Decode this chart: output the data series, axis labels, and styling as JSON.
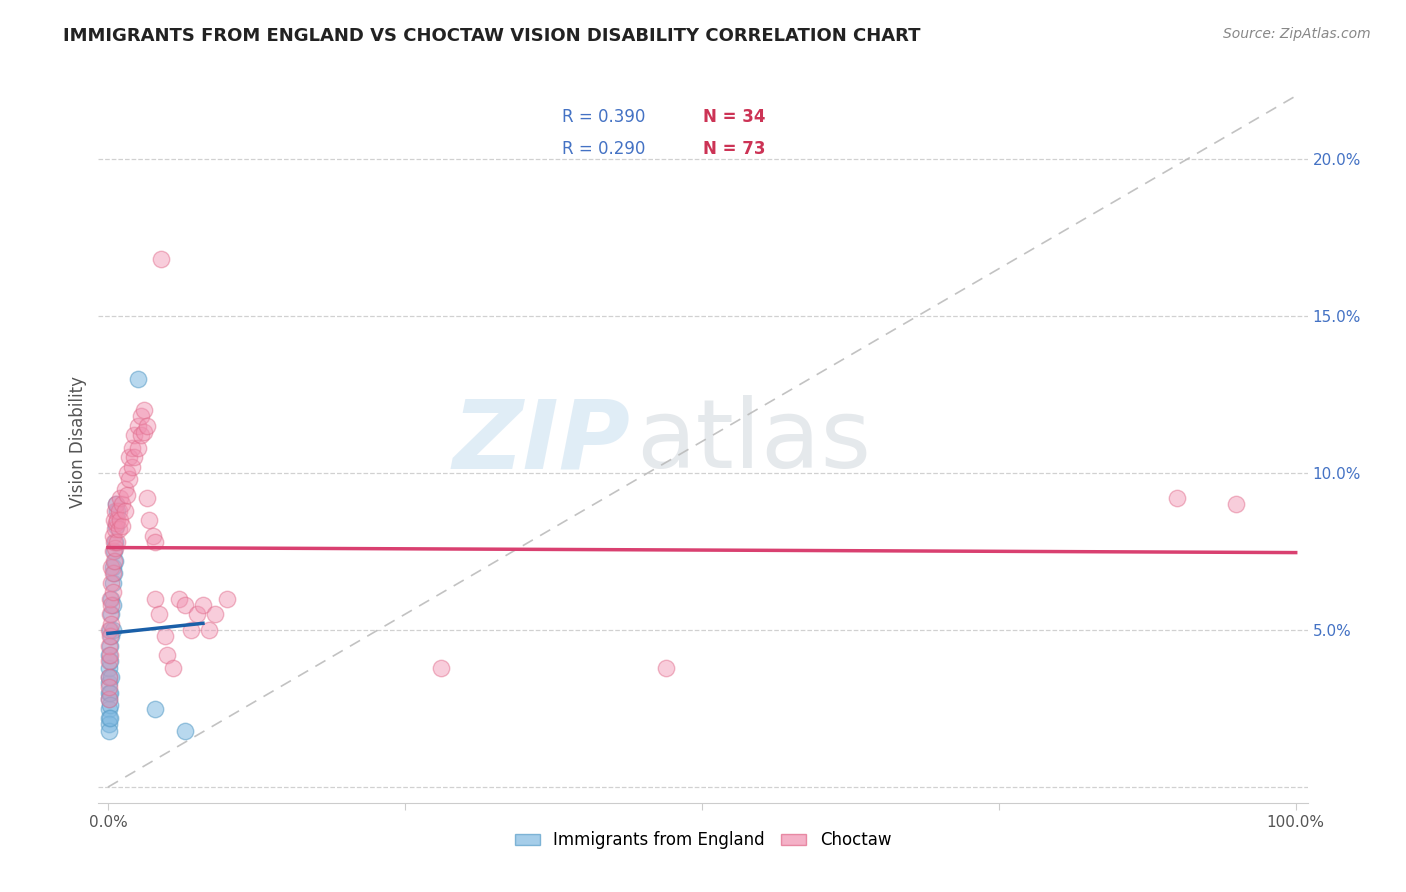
{
  "title": "IMMIGRANTS FROM ENGLAND VS CHOCTAW VISION DISABILITY CORRELATION CHART",
  "source": "Source: ZipAtlas.com",
  "ylabel": "Vision Disability",
  "color_blue": "#7fb8e0",
  "color_blue_edge": "#5a9ec8",
  "color_pink": "#f090b0",
  "color_pink_edge": "#e06888",
  "color_trendline_blue": "#1a5fa8",
  "color_trendline_pink": "#d94070",
  "color_dashed": "#b8b8b8",
  "watermark_zip": "ZIP",
  "watermark_atlas": "atlas",
  "blue_points": [
    [
      0.001,
      0.028
    ],
    [
      0.001,
      0.033
    ],
    [
      0.001,
      0.025
    ],
    [
      0.001,
      0.022
    ],
    [
      0.001,
      0.03
    ],
    [
      0.001,
      0.035
    ],
    [
      0.001,
      0.02
    ],
    [
      0.001,
      0.038
    ],
    [
      0.001,
      0.018
    ],
    [
      0.001,
      0.042
    ],
    [
      0.002,
      0.03
    ],
    [
      0.002,
      0.026
    ],
    [
      0.002,
      0.045
    ],
    [
      0.002,
      0.04
    ],
    [
      0.002,
      0.022
    ],
    [
      0.002,
      0.05
    ],
    [
      0.003,
      0.055
    ],
    [
      0.003,
      0.048
    ],
    [
      0.003,
      0.035
    ],
    [
      0.003,
      0.06
    ],
    [
      0.004,
      0.065
    ],
    [
      0.004,
      0.058
    ],
    [
      0.004,
      0.05
    ],
    [
      0.004,
      0.07
    ],
    [
      0.005,
      0.075
    ],
    [
      0.005,
      0.068
    ],
    [
      0.006,
      0.078
    ],
    [
      0.006,
      0.072
    ],
    [
      0.007,
      0.083
    ],
    [
      0.007,
      0.09
    ],
    [
      0.008,
      0.088
    ],
    [
      0.025,
      0.13
    ],
    [
      0.04,
      0.025
    ],
    [
      0.065,
      0.018
    ]
  ],
  "pink_points": [
    [
      0.001,
      0.04
    ],
    [
      0.001,
      0.035
    ],
    [
      0.001,
      0.028
    ],
    [
      0.001,
      0.05
    ],
    [
      0.001,
      0.045
    ],
    [
      0.001,
      0.032
    ],
    [
      0.002,
      0.055
    ],
    [
      0.002,
      0.048
    ],
    [
      0.002,
      0.06
    ],
    [
      0.002,
      0.042
    ],
    [
      0.003,
      0.065
    ],
    [
      0.003,
      0.058
    ],
    [
      0.003,
      0.07
    ],
    [
      0.003,
      0.052
    ],
    [
      0.004,
      0.075
    ],
    [
      0.004,
      0.068
    ],
    [
      0.004,
      0.08
    ],
    [
      0.004,
      0.062
    ],
    [
      0.005,
      0.085
    ],
    [
      0.005,
      0.078
    ],
    [
      0.005,
      0.072
    ],
    [
      0.006,
      0.088
    ],
    [
      0.006,
      0.082
    ],
    [
      0.006,
      0.076
    ],
    [
      0.007,
      0.09
    ],
    [
      0.007,
      0.084
    ],
    [
      0.008,
      0.085
    ],
    [
      0.008,
      0.078
    ],
    [
      0.009,
      0.088
    ],
    [
      0.009,
      0.082
    ],
    [
      0.01,
      0.092
    ],
    [
      0.01,
      0.085
    ],
    [
      0.012,
      0.09
    ],
    [
      0.012,
      0.083
    ],
    [
      0.014,
      0.095
    ],
    [
      0.014,
      0.088
    ],
    [
      0.016,
      0.1
    ],
    [
      0.016,
      0.093
    ],
    [
      0.018,
      0.105
    ],
    [
      0.018,
      0.098
    ],
    [
      0.02,
      0.108
    ],
    [
      0.02,
      0.102
    ],
    [
      0.022,
      0.112
    ],
    [
      0.022,
      0.105
    ],
    [
      0.025,
      0.115
    ],
    [
      0.025,
      0.108
    ],
    [
      0.028,
      0.118
    ],
    [
      0.028,
      0.112
    ],
    [
      0.03,
      0.12
    ],
    [
      0.03,
      0.113
    ],
    [
      0.033,
      0.115
    ],
    [
      0.033,
      0.092
    ],
    [
      0.035,
      0.085
    ],
    [
      0.038,
      0.08
    ],
    [
      0.04,
      0.078
    ],
    [
      0.04,
      0.06
    ],
    [
      0.043,
      0.055
    ],
    [
      0.045,
      0.168
    ],
    [
      0.048,
      0.048
    ],
    [
      0.05,
      0.042
    ],
    [
      0.055,
      0.038
    ],
    [
      0.06,
      0.06
    ],
    [
      0.065,
      0.058
    ],
    [
      0.07,
      0.05
    ],
    [
      0.075,
      0.055
    ],
    [
      0.08,
      0.058
    ],
    [
      0.085,
      0.05
    ],
    [
      0.09,
      0.055
    ],
    [
      0.1,
      0.06
    ],
    [
      0.28,
      0.038
    ],
    [
      0.47,
      0.038
    ],
    [
      0.9,
      0.092
    ],
    [
      0.95,
      0.09
    ]
  ]
}
